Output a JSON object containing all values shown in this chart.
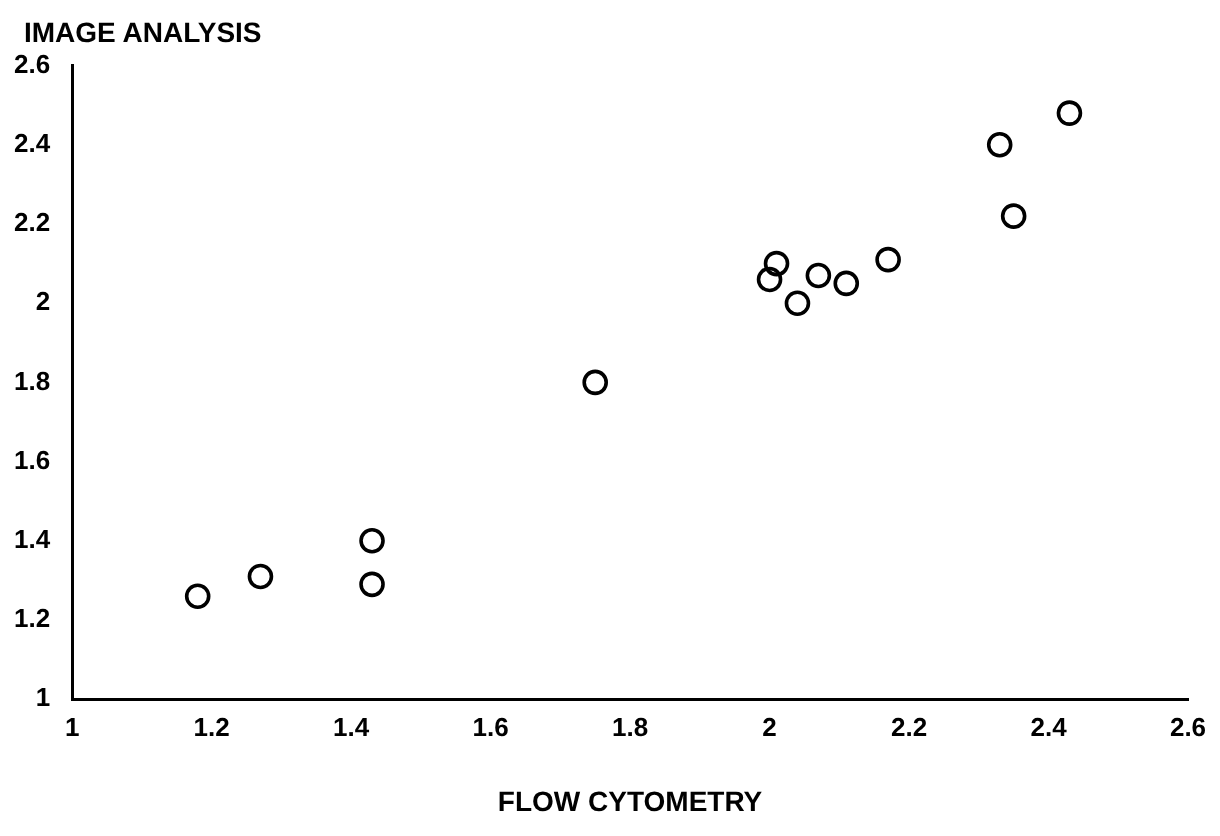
{
  "chart_data": {
    "type": "scatter",
    "xlabel": "FLOW CYTOMETRY",
    "ylabel": "IMAGE ANALYSIS",
    "marker": "circle",
    "grid": false,
    "legend": false,
    "x": [
      1.18,
      1.27,
      1.43,
      1.43,
      1.75,
      2.0,
      2.01,
      2.04,
      2.07,
      2.11,
      2.17,
      2.33,
      2.35,
      2.43
    ],
    "series": [
      {
        "color": "#000000",
        "values": [
          1.26,
          1.31,
          1.4,
          1.29,
          1.8,
          2.06,
          2.1,
          2.0,
          2.07,
          2.05,
          2.11,
          2.4,
          2.22,
          2.48
        ]
      }
    ],
    "xlim": [
      1,
      2.6
    ],
    "xticks": [
      1,
      1.2,
      1.4,
      1.6,
      1.8,
      2,
      2.2,
      2.4,
      2.6
    ],
    "ylim": [
      1,
      2.6
    ],
    "yticks": [
      1,
      1.2,
      1.4,
      1.6,
      1.8,
      2,
      2.2,
      2.4,
      2.6
    ]
  }
}
